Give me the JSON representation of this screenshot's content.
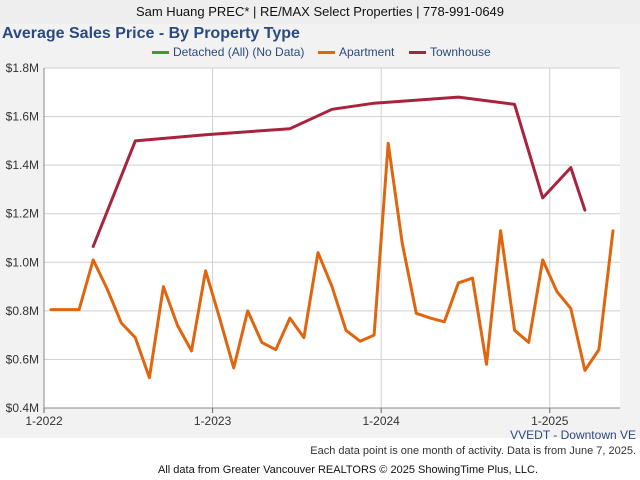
{
  "header": {
    "banner": "Sam Huang PREC* | RE/MAX Select Properties | 778-991-0649"
  },
  "chart_data": {
    "type": "line",
    "title": "Average Sales Price - By Property Type",
    "yticks": [
      "$0.4M",
      "$0.6M",
      "$0.8M",
      "$1.0M",
      "$1.2M",
      "$1.4M",
      "$1.6M",
      "$1.8M"
    ],
    "ylim": [
      0.4,
      1.8
    ],
    "xticks": [
      "1-2022",
      "1-2023",
      "1-2024",
      "1-2025"
    ],
    "x_start": "1-2022",
    "x_end": "6-2025",
    "grid": true,
    "legend_position": "top",
    "series": [
      {
        "name": "Detached (All) (No Data)",
        "color": "#3aa31c",
        "values": []
      },
      {
        "name": "Apartment",
        "color": "#e0650f",
        "values": [
          0.805,
          0.805,
          0.805,
          1.01,
          0.89,
          0.75,
          0.69,
          0.525,
          0.9,
          0.74,
          0.635,
          0.965,
          0.77,
          0.565,
          0.8,
          0.67,
          0.64,
          0.77,
          0.69,
          1.04,
          0.9,
          0.72,
          0.675,
          0.7,
          1.49,
          1.08,
          0.79,
          0.77,
          0.755,
          0.915,
          0.935,
          0.58,
          1.13,
          0.72,
          0.67,
          1.01,
          0.88,
          0.81,
          0.555,
          0.64,
          1.13
        ]
      },
      {
        "name": "Townhouse",
        "color": "#a8243e",
        "values": [
          null,
          null,
          null,
          1.065,
          null,
          null,
          1.5,
          null,
          null,
          null,
          null,
          1.525,
          null,
          null,
          null,
          null,
          null,
          1.55,
          null,
          null,
          1.63,
          null,
          null,
          1.655,
          null,
          null,
          null,
          null,
          null,
          1.68,
          null,
          null,
          null,
          1.65,
          null,
          1.265,
          null,
          1.39,
          1.215,
          null,
          null
        ]
      }
    ]
  },
  "notes": {
    "area": "VVEDT - Downtown VE",
    "activity": "Each data point is one month of activity. Data is from June 7, 2025.",
    "source": "All data from Greater Vancouver REALTORS © 2025 ShowingTime Plus, LLC."
  }
}
